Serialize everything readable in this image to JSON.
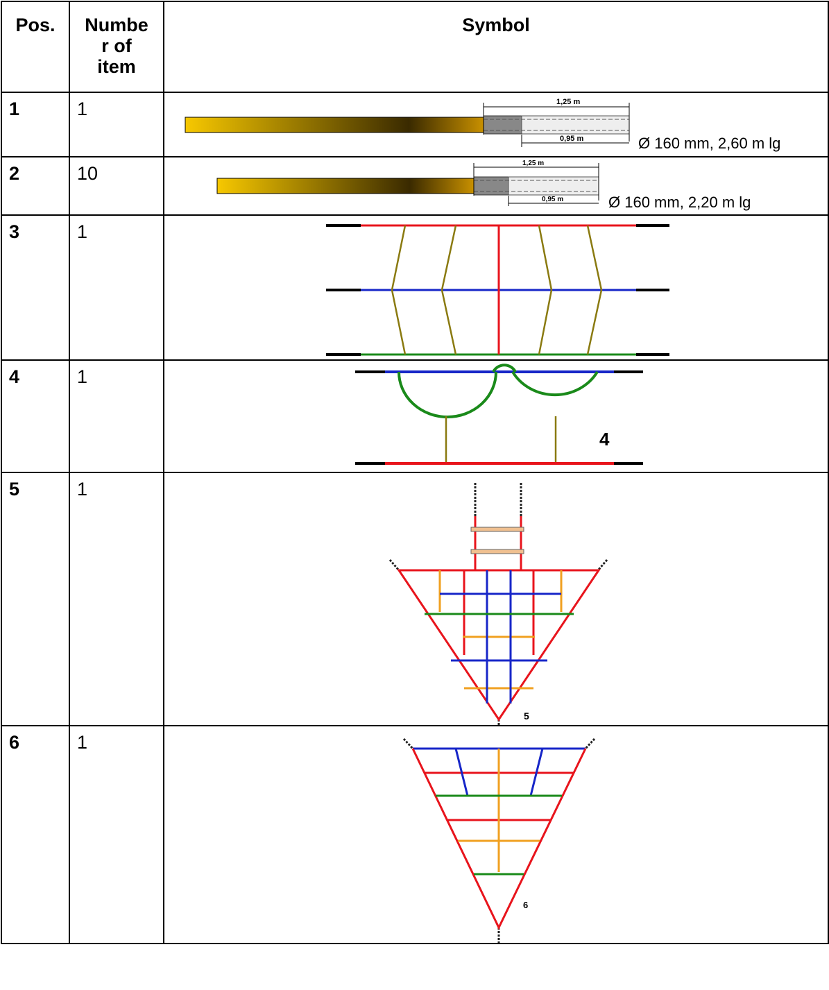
{
  "headers": {
    "pos": "Pos.",
    "number": "Number of item",
    "number_line1": "Numbe",
    "number_line2": "r of",
    "number_line3": "item",
    "symbol": "Symbol"
  },
  "rows": [
    {
      "pos": "1",
      "number": "1",
      "dim_top": "1,25 m",
      "dim_bottom": "0,95 m",
      "spec": "Ø 160 mm, 2,60 m lg"
    },
    {
      "pos": "2",
      "number": "10",
      "dim_top": "1,25 m",
      "dim_bottom": "0,95 m",
      "spec": "Ø 160 mm, 2,20 m lg"
    },
    {
      "pos": "3",
      "number": "1"
    },
    {
      "pos": "4",
      "number": "1",
      "label": "4"
    },
    {
      "pos": "5",
      "number": "1",
      "label": "5"
    },
    {
      "pos": "6",
      "number": "1",
      "label": "6"
    }
  ],
  "colors": {
    "red": "#e8141c",
    "blue": "#1726c8",
    "green": "#1a8a1a",
    "orange": "#f0a020",
    "olive": "#8a7a10",
    "pole_gold": "#f7c800",
    "pole_dark": "#3a2a00"
  }
}
